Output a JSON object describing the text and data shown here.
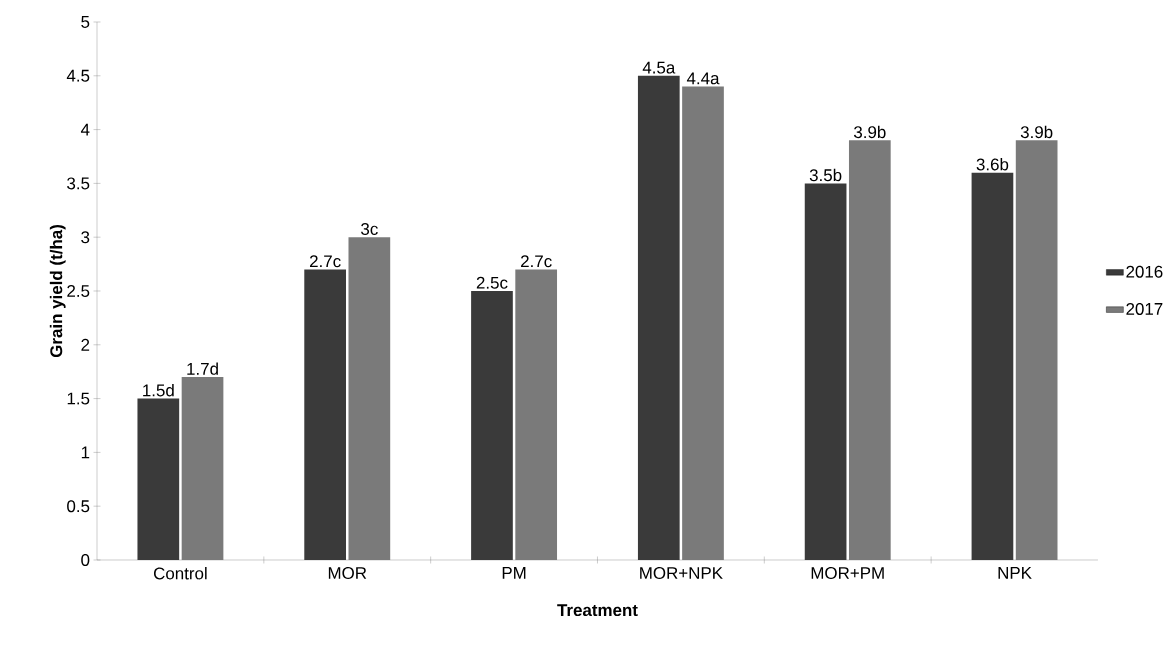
{
  "chart_data": {
    "type": "bar",
    "xlabel": "Treatment",
    "ylabel": "Grain yield (t/ha)",
    "categories": [
      "Control",
      "MOR",
      "PM",
      "MOR+NPK",
      "MOR+PM",
      "NPK"
    ],
    "series": [
      {
        "name": "2016",
        "color": "#3a3a3a",
        "values": [
          1.5,
          2.7,
          2.5,
          4.5,
          3.5,
          3.6
        ],
        "value_labels": [
          "1.5d",
          "2.7c",
          "2.5c",
          "4.5a",
          "3.5b",
          "3.6b"
        ]
      },
      {
        "name": "2017",
        "color": "#7a7a7a",
        "values": [
          1.7,
          3.0,
          2.7,
          4.4,
          3.9,
          3.9
        ],
        "value_labels": [
          "1.7d",
          "3c",
          "2.7c",
          "4.4a",
          "3.9b",
          "3.9b"
        ]
      }
    ],
    "ylim": [
      0,
      5
    ],
    "yticks": [
      0,
      0.5,
      1,
      1.5,
      2,
      2.5,
      3,
      3.5,
      4,
      4.5,
      5
    ],
    "grid": false,
    "legend": "right"
  }
}
